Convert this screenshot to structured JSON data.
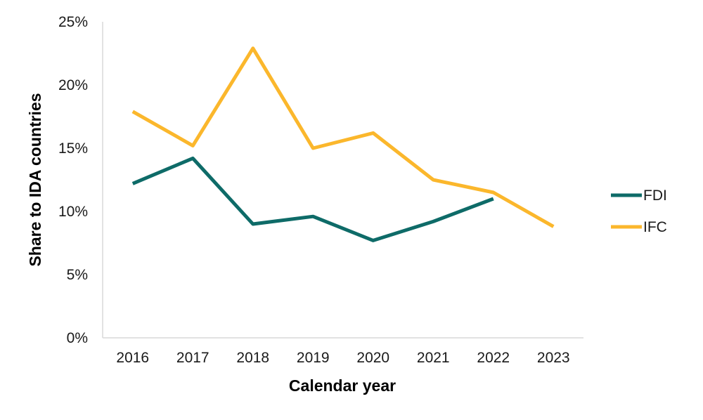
{
  "chart_data": {
    "type": "line",
    "title": "",
    "xlabel": "Calendar year",
    "ylabel": "Share to IDA countries",
    "categories": [
      "2016",
      "2017",
      "2018",
      "2019",
      "2020",
      "2021",
      "2022",
      "2023"
    ],
    "ylim": [
      0,
      25
    ],
    "yticks": [
      "0%",
      "5%",
      "10%",
      "15%",
      "20%",
      "25%"
    ],
    "grid": false,
    "legend_position": "right",
    "series": [
      {
        "name": "FDI",
        "color": "#0e6b68",
        "values": [
          12.2,
          14.2,
          9.0,
          9.6,
          7.7,
          9.2,
          11.0,
          null
        ]
      },
      {
        "name": "IFC",
        "color": "#fbb72c",
        "values": [
          17.9,
          15.2,
          22.9,
          15.0,
          16.2,
          12.5,
          11.5,
          8.8
        ]
      }
    ]
  }
}
